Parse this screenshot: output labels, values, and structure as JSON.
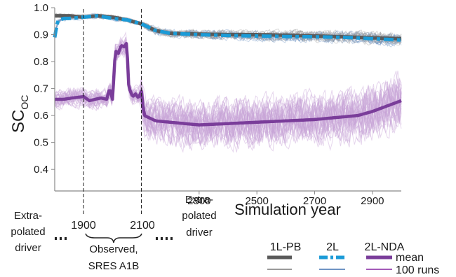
{
  "chart_data": {
    "type": "line",
    "ylabel_main": "SC",
    "ylabel_sub": "OC",
    "xlabel": "Simulation year",
    "ylim": [
      0.32,
      1.0
    ],
    "xlim": [
      1800,
      3000
    ],
    "yticks": [
      "0.4",
      "0.5",
      "0.6",
      "0.7",
      "0.8",
      "0.9",
      "1.0"
    ],
    "xticks": [
      "2300",
      "2500",
      "2700",
      "2900"
    ],
    "period_markers": [
      1900,
      2100
    ],
    "grid": false,
    "series": [
      {
        "name": "1L-PB",
        "color": "#5a5a5a",
        "runs_color": "#9a9a9a",
        "x": [
          1800,
          1850,
          1900,
          1950,
          2000,
          2050,
          2100,
          2150,
          2200,
          2300,
          2400,
          2500,
          2600,
          2700,
          2800,
          2900,
          3000
        ],
        "values": [
          0.97,
          0.97,
          0.965,
          0.97,
          0.965,
          0.955,
          0.94,
          0.915,
          0.905,
          0.902,
          0.9,
          0.9,
          0.898,
          0.895,
          0.892,
          0.888,
          0.885
        ]
      },
      {
        "name": "2L",
        "color": "#1b9bd7",
        "runs_color": "#6f94c4",
        "x": [
          1800,
          1810,
          1830,
          1850,
          1900,
          1950,
          2000,
          2050,
          2100,
          2150,
          2200,
          2300,
          2400,
          2500,
          2600,
          2700,
          2800,
          2900,
          3000
        ],
        "values": [
          0.89,
          0.95,
          0.96,
          0.96,
          0.965,
          0.97,
          0.96,
          0.955,
          0.94,
          0.915,
          0.905,
          0.9,
          0.897,
          0.895,
          0.893,
          0.892,
          0.89,
          0.885,
          0.88
        ]
      },
      {
        "name": "2L-NDA",
        "color": "#7a3d9a",
        "runs_color": "#c8a4d8",
        "x": [
          1800,
          1830,
          1860,
          1900,
          1920,
          1940,
          1960,
          1980,
          1990,
          2000,
          2010,
          2020,
          2030,
          2040,
          2050,
          2055,
          2060,
          2070,
          2080,
          2090,
          2100,
          2110,
          2150,
          2200,
          2300,
          2400,
          2500,
          2600,
          2700,
          2800,
          2850,
          2900,
          2950,
          3000
        ],
        "values": [
          0.66,
          0.66,
          0.665,
          0.67,
          0.655,
          0.66,
          0.665,
          0.66,
          0.7,
          0.66,
          0.84,
          0.83,
          0.86,
          0.855,
          0.87,
          0.72,
          0.695,
          0.67,
          0.68,
          0.665,
          0.69,
          0.6,
          0.58,
          0.575,
          0.565,
          0.57,
          0.575,
          0.58,
          0.585,
          0.595,
          0.6,
          0.615,
          0.635,
          0.655
        ]
      }
    ],
    "legend": {
      "headers": [
        "1L-PB",
        "2L",
        "2L-NDA"
      ],
      "row_labels": [
        "mean",
        "100 runs"
      ]
    },
    "annotations": {
      "left_top": "Extra-",
      "left_mid": "polated",
      "left_bot": "driver",
      "right_top": "Extra-",
      "right_mid": "polated",
      "right_bot": "driver",
      "year_a": "1900",
      "year_b": "2100",
      "observed_1": "Observed,",
      "observed_2": "SRES A1B"
    }
  }
}
